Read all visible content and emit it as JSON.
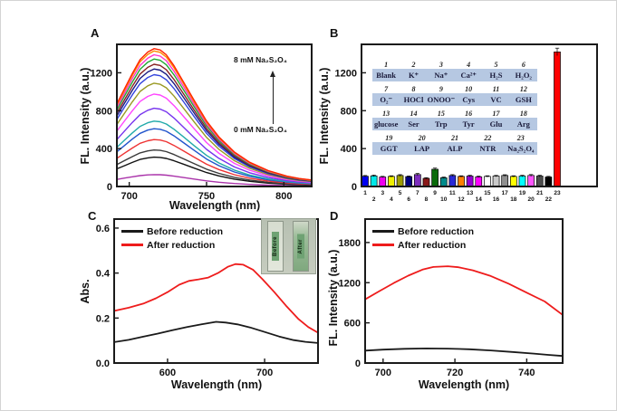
{
  "chart_data": [
    {
      "id": "A",
      "type": "line",
      "letter": "A",
      "xlabel": "Wavelength (nm)",
      "ylabel": "FL. Intensity (a.u.)",
      "xlim": [
        692,
        818
      ],
      "ylim": [
        0,
        1500
      ],
      "xticks": [
        700,
        750,
        800
      ],
      "yticks": [
        0,
        400,
        800,
        1200
      ],
      "peak_wavelength_nm": 716,
      "annotations": {
        "top": "8 mM Na₂S₂O₄",
        "bottom": "0 mM Na₂S₂O₄",
        "arrow": "up"
      },
      "shape": [
        [
          692,
          0.6
        ],
        [
          697,
          0.71
        ],
        [
          702,
          0.82
        ],
        [
          707,
          0.92
        ],
        [
          712,
          0.975
        ],
        [
          716,
          1.0
        ],
        [
          720,
          0.99
        ],
        [
          724,
          0.955
        ],
        [
          729,
          0.875
        ],
        [
          735,
          0.76
        ],
        [
          742,
          0.625
        ],
        [
          750,
          0.475
        ],
        [
          758,
          0.36
        ],
        [
          768,
          0.25
        ],
        [
          778,
          0.175
        ],
        [
          790,
          0.115
        ],
        [
          802,
          0.075
        ],
        [
          810,
          0.058
        ],
        [
          818,
          0.047
        ]
      ],
      "series": [
        {
          "peak": 125,
          "color": "#aa33aa"
        },
        {
          "peak": 310,
          "color": "#111111"
        },
        {
          "peak": 385,
          "color": "#3a3a3a"
        },
        {
          "peak": 495,
          "color": "#ee3333"
        },
        {
          "peak": 610,
          "color": "#2255cc"
        },
        {
          "peak": 690,
          "color": "#22aaaa"
        },
        {
          "peak": 825,
          "color": "#7733ee"
        },
        {
          "peak": 975,
          "color": "#ff44ff"
        },
        {
          "peak": 1090,
          "color": "#999922"
        },
        {
          "peak": 1180,
          "color": "#3344dd"
        },
        {
          "peak": 1240,
          "color": "#1a1a80"
        },
        {
          "peak": 1290,
          "color": "#882222"
        },
        {
          "peak": 1345,
          "color": "#22aa33"
        },
        {
          "peak": 1390,
          "color": "#ff33cc"
        },
        {
          "peak": 1430,
          "color": "#ff8800"
        },
        {
          "peak": 1455,
          "color": "#ff2200"
        }
      ]
    },
    {
      "id": "B",
      "type": "bar",
      "letter": "B",
      "xlabel": "",
      "ylabel": "FL. Intensity (a.u.)",
      "ylim": [
        0,
        1500
      ],
      "yticks": [
        0,
        400,
        800,
        1200
      ],
      "categories": [
        "1",
        "2",
        "3",
        "4",
        "5",
        "6",
        "7",
        "8",
        "9",
        "10",
        "11",
        "12",
        "13",
        "14",
        "15",
        "16",
        "17",
        "18",
        "19",
        "20",
        "21",
        "22",
        "23"
      ],
      "values": [
        108,
        112,
        100,
        106,
        116,
        104,
        126,
        86,
        182,
        92,
        116,
        106,
        110,
        102,
        106,
        110,
        116,
        106,
        110,
        116,
        110,
        100,
        1420
      ],
      "errors": [
        8,
        8,
        7,
        7,
        9,
        7,
        12,
        7,
        12,
        7,
        9,
        7,
        8,
        7,
        7,
        7,
        8,
        7,
        8,
        10,
        8,
        7,
        40
      ],
      "colors": [
        "#0000f0",
        "#00e8e8",
        "#f000f0",
        "#f0f000",
        "#9c9c00",
        "#000080",
        "#7d2ebd",
        "#8b1a1a",
        "#0a6b0a",
        "#008b8b",
        "#2929d6",
        "#ff7f00",
        "#9400d3",
        "#ff00ff",
        "#ffffff",
        "#c9c9c9",
        "#8f8f8f",
        "#ffff00",
        "#00ffff",
        "#ff55ff",
        "#4d4d4d",
        "#000000",
        "#ff0000"
      ],
      "inset": {
        "row_background": "#b6c8e2",
        "groups": [
          {
            "nums": [
              "1",
              "2",
              "3",
              "4",
              "5",
              "6"
            ],
            "labels": [
              "Blank",
              "K⁺",
              "Na⁺",
              "Ca²⁺",
              "H₂S",
              "H₂O₂"
            ]
          },
          {
            "nums": [
              "7",
              "8",
              "9",
              "10",
              "11",
              "12"
            ],
            "labels": [
              "O₂⁻",
              "HOCl",
              "ONOO⁻",
              "Cys",
              "VC",
              "GSH"
            ]
          },
          {
            "nums": [
              "13",
              "14",
              "15",
              "16",
              "17",
              "18"
            ],
            "labels": [
              "glucose",
              "Ser",
              "Trp",
              "Tyr",
              "Glu",
              "Arg"
            ]
          },
          {
            "nums": [
              "19",
              "20",
              "21",
              "22",
              "23"
            ],
            "labels": [
              "GGT",
              "LAP",
              "ALP",
              "NTR",
              "Na₂S₂O₄"
            ]
          }
        ]
      }
    },
    {
      "id": "C",
      "type": "line",
      "letter": "C",
      "xlabel": "Wavelength (nm)",
      "ylabel": "Abs.",
      "xlim": [
        545,
        755
      ],
      "ylim": [
        0,
        0.64
      ],
      "xticks": [
        600,
        700
      ],
      "yticks": [
        0,
        0.2,
        0.4,
        0.6
      ],
      "ytick_labels": [
        "0.0",
        "0.2",
        "0.4",
        "0.6"
      ],
      "legend_position": "top-left",
      "inset": {
        "before_label": "Before",
        "after_label": "After"
      },
      "series": [
        {
          "name": "Before reduction",
          "color": "#1a1a1a",
          "points": [
            [
              545,
              0.093
            ],
            [
              560,
              0.103
            ],
            [
              575,
              0.117
            ],
            [
              590,
              0.131
            ],
            [
              605,
              0.146
            ],
            [
              620,
              0.16
            ],
            [
              635,
              0.172
            ],
            [
              650,
              0.183
            ],
            [
              660,
              0.18
            ],
            [
              672,
              0.172
            ],
            [
              685,
              0.158
            ],
            [
              700,
              0.138
            ],
            [
              715,
              0.118
            ],
            [
              730,
              0.102
            ],
            [
              742,
              0.094
            ],
            [
              755,
              0.089
            ]
          ]
        },
        {
          "name": "After reduction",
          "color": "#ee1c1c",
          "points": [
            [
              545,
              0.232
            ],
            [
              560,
              0.246
            ],
            [
              575,
              0.264
            ],
            [
              588,
              0.288
            ],
            [
              600,
              0.315
            ],
            [
              612,
              0.348
            ],
            [
              622,
              0.365
            ],
            [
              632,
              0.372
            ],
            [
              642,
              0.38
            ],
            [
              652,
              0.4
            ],
            [
              662,
              0.428
            ],
            [
              670,
              0.44
            ],
            [
              678,
              0.437
            ],
            [
              688,
              0.415
            ],
            [
              698,
              0.372
            ],
            [
              710,
              0.315
            ],
            [
              722,
              0.255
            ],
            [
              735,
              0.195
            ],
            [
              745,
              0.16
            ],
            [
              755,
              0.135
            ]
          ]
        }
      ]
    },
    {
      "id": "D",
      "type": "line",
      "letter": "D",
      "xlabel": "Wavelength (nm)",
      "ylabel": "FL. Intensity (a.u.)",
      "xlim": [
        695,
        750
      ],
      "ylim": [
        0,
        2150
      ],
      "xticks": [
        700,
        720,
        740
      ],
      "yticks": [
        0,
        600,
        1200,
        1800
      ],
      "legend_position": "top-left",
      "series": [
        {
          "name": "Before reduction",
          "color": "#1a1a1a",
          "points": [
            [
              695,
              185
            ],
            [
              700,
              200
            ],
            [
              706,
              212
            ],
            [
              712,
              218
            ],
            [
              718,
              215
            ],
            [
              724,
              205
            ],
            [
              730,
              188
            ],
            [
              736,
              165
            ],
            [
              742,
              140
            ],
            [
              746,
              122
            ],
            [
              750,
              105
            ]
          ]
        },
        {
          "name": "After reduction",
          "color": "#ee1c1c",
          "points": [
            [
              695,
              950
            ],
            [
              699,
              1075
            ],
            [
              703,
              1195
            ],
            [
              707,
              1305
            ],
            [
              711,
              1395
            ],
            [
              714,
              1435
            ],
            [
              718,
              1445
            ],
            [
              721,
              1430
            ],
            [
              725,
              1385
            ],
            [
              730,
              1300
            ],
            [
              735,
              1185
            ],
            [
              740,
              1050
            ],
            [
              745,
              920
            ],
            [
              750,
              720
            ]
          ]
        }
      ]
    }
  ]
}
